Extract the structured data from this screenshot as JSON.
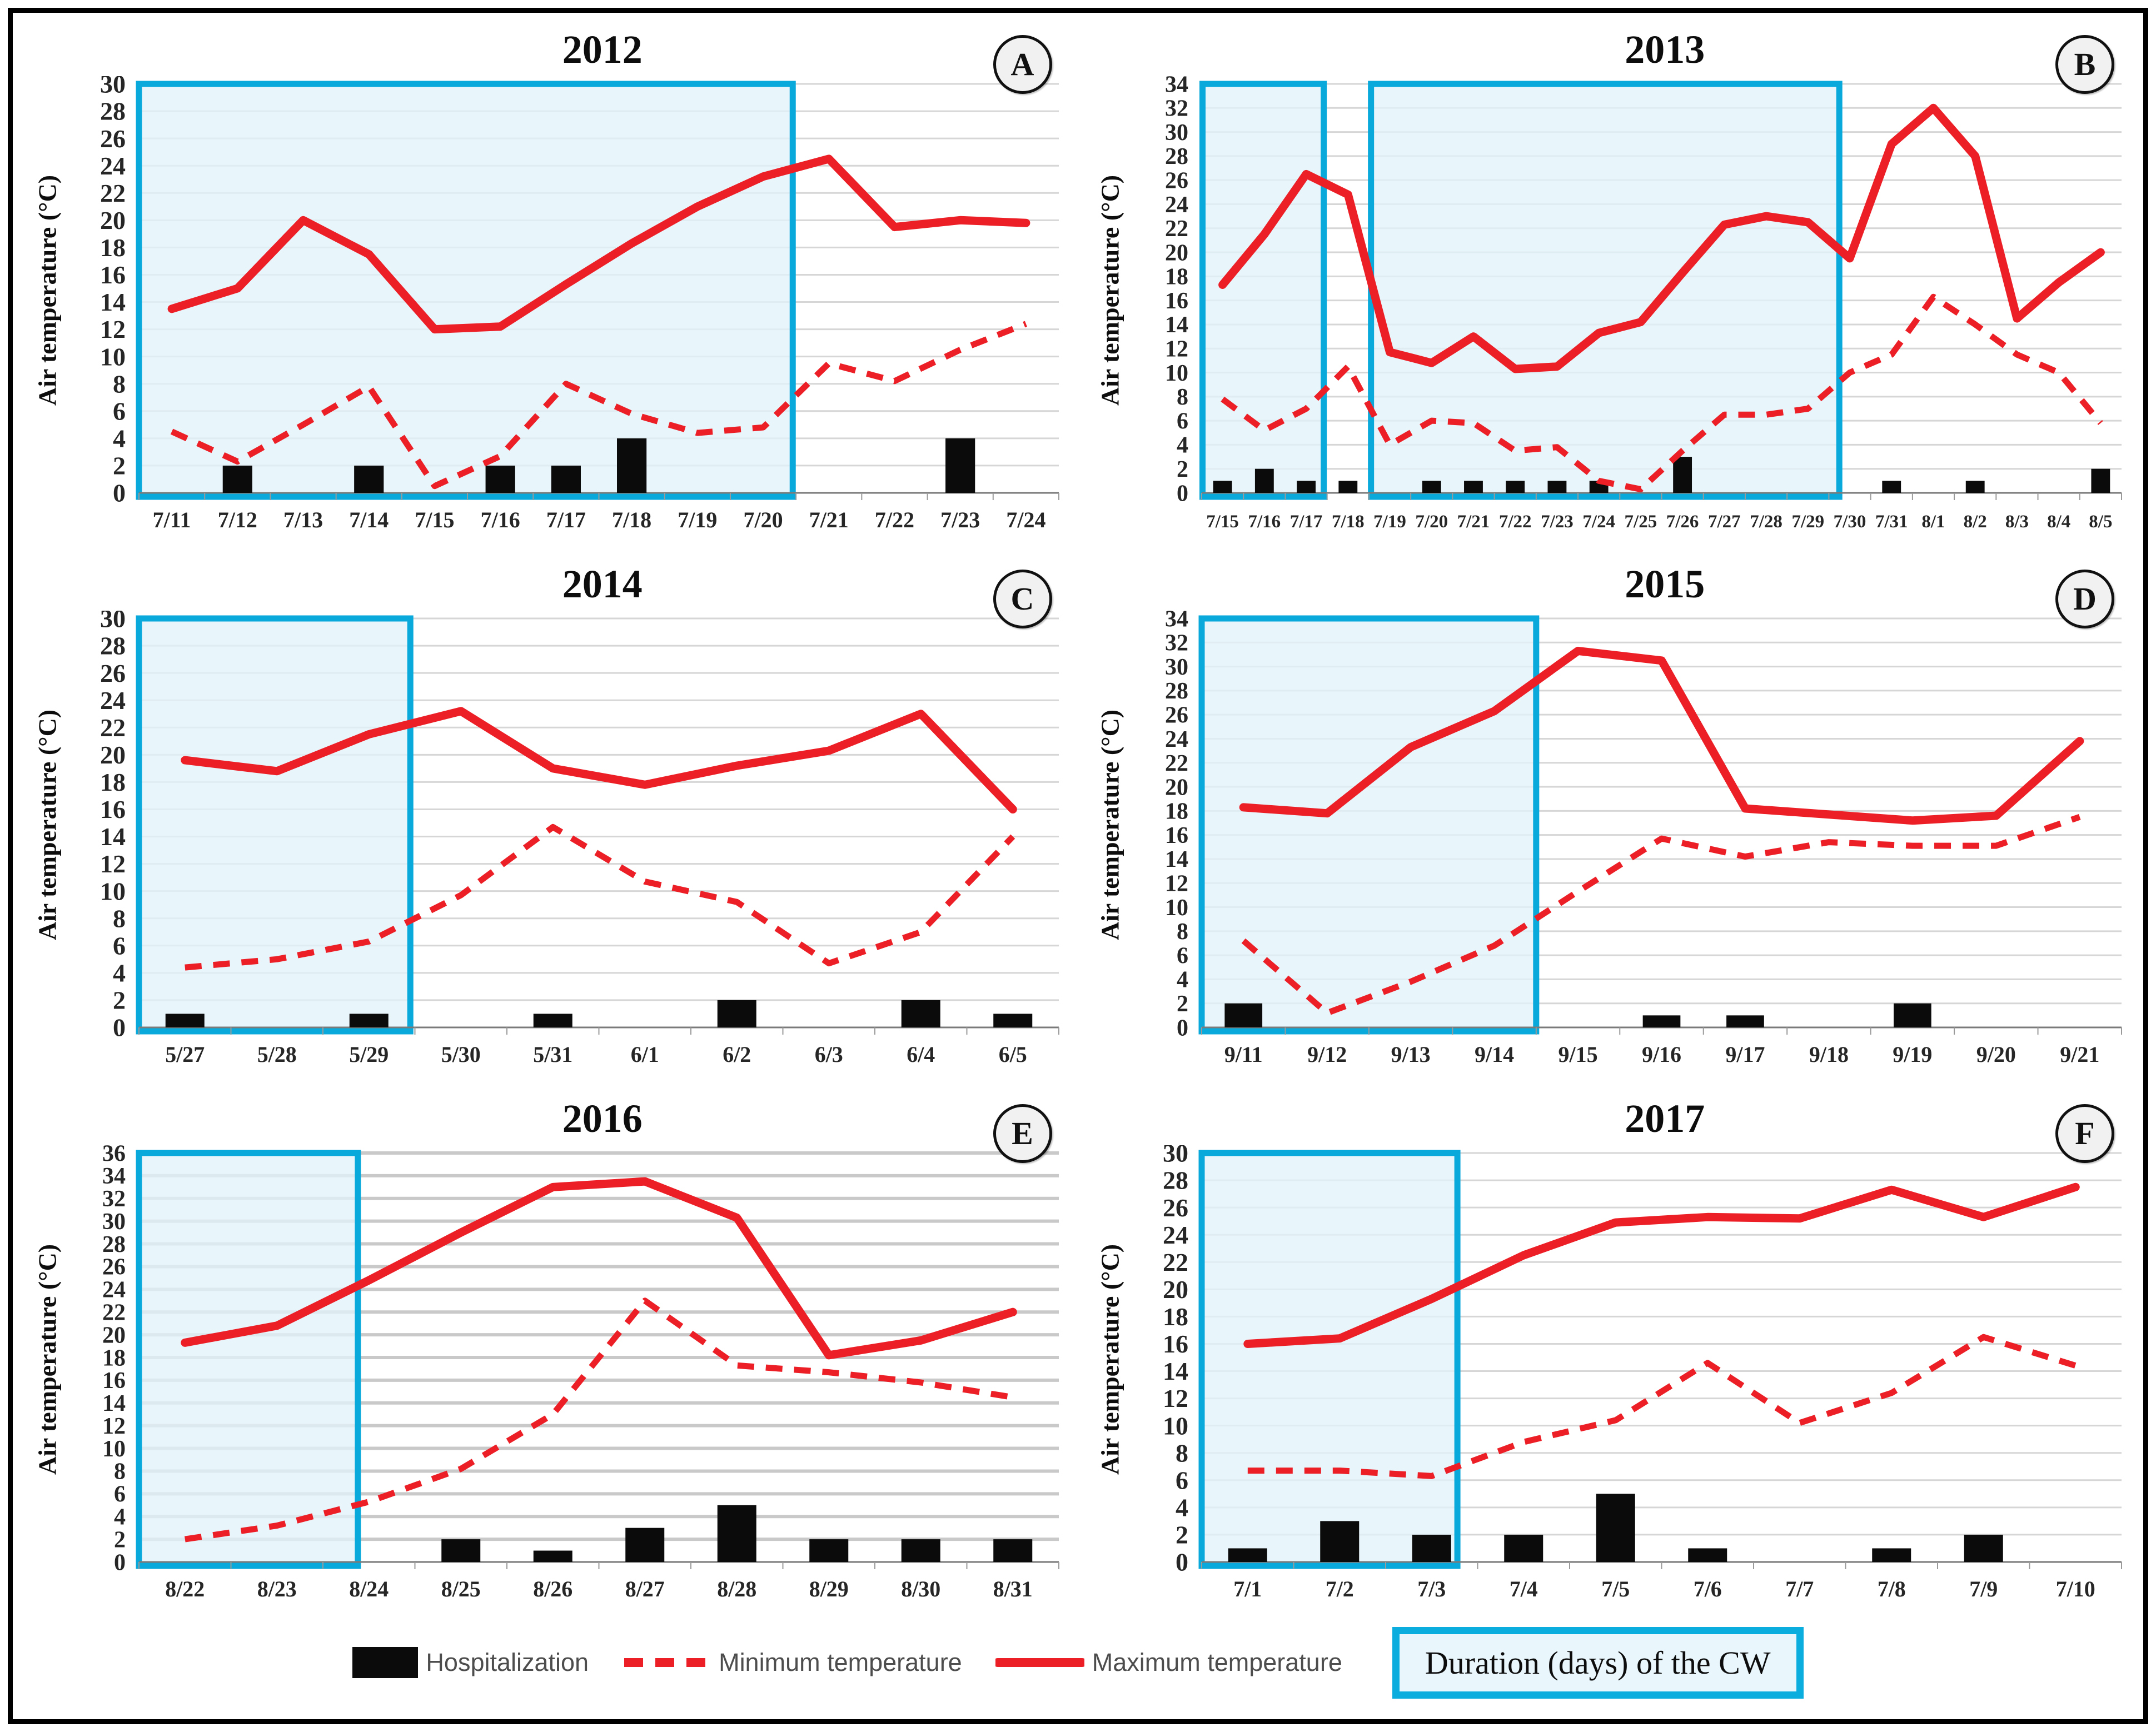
{
  "legend": {
    "hospitalization": "Hospitalization",
    "min_temp": "Minimum temperature",
    "max_temp": "Maximum temperature",
    "cw": "Duration (days) of the CW"
  },
  "colors": {
    "line_red": "#ec1f27",
    "bar_black": "#0b0b0b",
    "cw_border": "#0aa9db",
    "cw_fill": "#e1f2fa",
    "gridline": "#d6d6d6",
    "grid_heavy": "#c9c9c9",
    "axis_line": "#7a7a7a",
    "tick_text": "#262626"
  },
  "chart_data": [
    {
      "type": "line+bar",
      "title": "2012",
      "letter": "A",
      "ylabel": "Air temperature (°C)",
      "ylim": [
        0,
        30
      ],
      "ytick_step": 2,
      "grid": "on",
      "categories": [
        "7/11",
        "7/12",
        "7/13",
        "7/14",
        "7/15",
        "7/16",
        "7/17",
        "7/18",
        "7/19",
        "7/20",
        "7/21",
        "7/22",
        "7/23",
        "7/24"
      ],
      "series": [
        {
          "name": "Hospitalization",
          "type": "bar",
          "values": [
            0,
            2,
            0,
            2,
            0,
            2,
            2,
            4,
            0,
            0,
            0,
            0,
            4,
            0
          ]
        },
        {
          "name": "Minimum temperature",
          "type": "line-dashed",
          "values": [
            4.5,
            2.3,
            5,
            7.8,
            0.5,
            2.7,
            8,
            5.8,
            4.4,
            4.8,
            9.5,
            8.2,
            10.5,
            12.4
          ]
        },
        {
          "name": "Maximum temperature",
          "type": "line",
          "values": [
            13.5,
            15,
            20,
            17.5,
            12,
            12.2,
            15.3,
            18.3,
            21,
            23.2,
            24.5,
            19.5,
            20,
            19.8
          ]
        }
      ],
      "cw_ranges": [
        [
          -0.5,
          9.45
        ]
      ]
    },
    {
      "type": "line+bar",
      "title": "2013",
      "letter": "B",
      "ylabel": "Air temperature (°C)",
      "ylim": [
        0,
        34
      ],
      "ytick_step": 2,
      "grid": "on",
      "categories": [
        "7/15",
        "7/16",
        "7/17",
        "7/18",
        "7/19",
        "7/20",
        "7/21",
        "7/22",
        "7/23",
        "7/24",
        "7/25",
        "7/26",
        "7/27",
        "7/28",
        "7/29",
        "7/30",
        "7/31",
        "8/1",
        "8/2",
        "8/3",
        "8/4",
        "8/5"
      ],
      "series": [
        {
          "name": "Hospitalization",
          "type": "bar",
          "values": [
            1,
            2,
            1,
            1,
            0,
            1,
            1,
            1,
            1,
            1,
            0,
            3,
            0,
            0,
            0,
            0,
            1,
            0,
            1,
            0,
            0,
            2
          ]
        },
        {
          "name": "Minimum temperature",
          "type": "line-dashed",
          "values": [
            7.8,
            5.2,
            7,
            10.5,
            4,
            6,
            5.8,
            3.5,
            3.8,
            1,
            0.3,
            3.5,
            6.5,
            6.5,
            7,
            10,
            11.5,
            16.3,
            14,
            11.5,
            10,
            5.8
          ]
        },
        {
          "name": "Maximum temperature",
          "type": "line",
          "values": [
            17.3,
            21.5,
            26.5,
            24.8,
            11.7,
            10.8,
            13,
            10.3,
            10.5,
            13.3,
            14.2,
            18.3,
            22.3,
            23,
            22.5,
            19.5,
            29,
            32,
            28,
            14.5,
            17.5,
            20
          ]
        }
      ],
      "cw_ranges": [
        [
          -0.48,
          2.42
        ],
        [
          3.55,
          14.75
        ]
      ]
    },
    {
      "type": "line+bar",
      "title": "2014",
      "letter": "C",
      "ylabel": "Air temperature (°C)",
      "ylim": [
        0,
        30
      ],
      "ytick_step": 2,
      "grid": "on",
      "categories": [
        "5/27",
        "5/28",
        "5/29",
        "5/30",
        "5/31",
        "6/1",
        "6/2",
        "6/3",
        "6/4",
        "6/5"
      ],
      "series": [
        {
          "name": "Hospitalization",
          "type": "bar",
          "values": [
            1,
            0,
            1,
            0,
            1,
            0,
            2,
            0,
            2,
            1
          ]
        },
        {
          "name": "Minimum temperature",
          "type": "line-dashed",
          "values": [
            4.4,
            5,
            6.3,
            9.7,
            14.7,
            10.7,
            9.2,
            4.7,
            7,
            14
          ]
        },
        {
          "name": "Maximum temperature",
          "type": "line",
          "values": [
            19.6,
            18.8,
            21.5,
            23.2,
            19,
            17.8,
            19.2,
            20.3,
            23,
            16
          ]
        }
      ],
      "cw_ranges": [
        [
          -0.5,
          2.45
        ]
      ]
    },
    {
      "type": "line+bar",
      "title": "2015",
      "letter": "D",
      "ylabel": "Air temperature (°C)",
      "ylim": [
        0,
        34
      ],
      "ytick_step": 2,
      "grid": "on",
      "categories": [
        "9/11",
        "9/12",
        "9/13",
        "9/14",
        "9/15",
        "9/16",
        "9/17",
        "9/18",
        "9/19",
        "9/20",
        "9/21"
      ],
      "series": [
        {
          "name": "Hospitalization",
          "type": "bar",
          "values": [
            2,
            0,
            0,
            0,
            0,
            1,
            1,
            0,
            2,
            0,
            0
          ]
        },
        {
          "name": "Minimum temperature",
          "type": "line-dashed",
          "values": [
            7.2,
            1.2,
            3.8,
            6.8,
            11.3,
            15.7,
            14.2,
            15.4,
            15.1,
            15.1,
            17.5
          ]
        },
        {
          "name": "Maximum temperature",
          "type": "line",
          "values": [
            18.3,
            17.8,
            23.3,
            26.3,
            31.3,
            30.5,
            18.2,
            17.7,
            17.2,
            17.6,
            23.8
          ]
        }
      ],
      "cw_ranges": [
        [
          -0.5,
          3.5
        ]
      ]
    },
    {
      "type": "line+bar",
      "title": "2016",
      "letter": "E",
      "ylabel": "Air temperature (°C)",
      "ylim": [
        0,
        36
      ],
      "ytick_step": 2,
      "grid": "on",
      "grid_weight": 6,
      "categories": [
        "8/22",
        "8/23",
        "8/24",
        "8/25",
        "8/26",
        "8/27",
        "8/28",
        "8/29",
        "8/30",
        "8/31"
      ],
      "series": [
        {
          "name": "Hospitalization",
          "type": "bar",
          "values": [
            0,
            0,
            0,
            2,
            1,
            3,
            5,
            2,
            2,
            2
          ]
        },
        {
          "name": "Minimum temperature",
          "type": "line-dashed",
          "values": [
            2,
            3.2,
            5.3,
            8.2,
            13,
            23,
            17.3,
            16.7,
            15.8,
            14.5
          ]
        },
        {
          "name": "Maximum temperature",
          "type": "line",
          "values": [
            19.3,
            20.8,
            24.8,
            29,
            33,
            33.5,
            30.3,
            18.2,
            19.5,
            22
          ]
        }
      ],
      "cw_ranges": [
        [
          -0.5,
          1.88
        ]
      ]
    },
    {
      "type": "line+bar",
      "title": "2017",
      "letter": "F",
      "ylabel": "Air temperature (°C)",
      "ylim": [
        0,
        30
      ],
      "ytick_step": 2,
      "grid": "on",
      "categories": [
        "7/1",
        "7/2",
        "7/3",
        "7/4",
        "7/5",
        "7/6",
        "7/7",
        "7/8",
        "7/9",
        "7/10"
      ],
      "series": [
        {
          "name": "Hospitalization",
          "type": "bar",
          "values": [
            1,
            3,
            2,
            2,
            5,
            1,
            0,
            1,
            2,
            0
          ]
        },
        {
          "name": "Minimum temperature",
          "type": "line-dashed",
          "values": [
            6.7,
            6.7,
            6.3,
            8.8,
            10.4,
            14.6,
            10.2,
            12.4,
            16.5,
            14.4
          ]
        },
        {
          "name": "Maximum temperature",
          "type": "line",
          "values": [
            16,
            16.4,
            19.3,
            22.5,
            24.9,
            25.3,
            25.2,
            27.3,
            25.3,
            27.5
          ]
        }
      ],
      "cw_ranges": [
        [
          -0.5,
          2.28
        ]
      ]
    }
  ]
}
